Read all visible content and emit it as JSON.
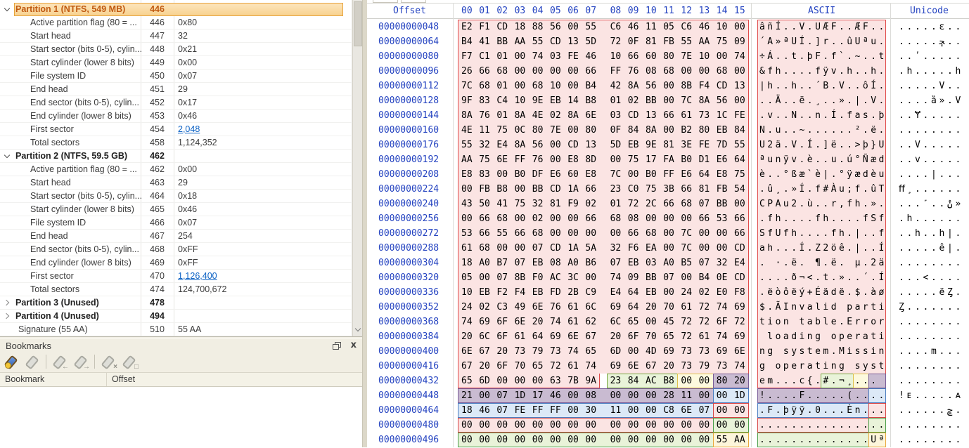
{
  "template_panel": {
    "rows": [
      {
        "type": "group",
        "state": "expanded",
        "selected": true,
        "label": "Partition 1 (NTFS, 549 MB)",
        "offset": "446",
        "value": ""
      },
      {
        "type": "field",
        "label": "Active partition flag (80 = ...",
        "offset": "446",
        "value": "0x80"
      },
      {
        "type": "field",
        "label": "Start head",
        "offset": "447",
        "value": "32"
      },
      {
        "type": "field",
        "label": "Start sector (bits 0-5), cylin...",
        "offset": "448",
        "value": "0x21"
      },
      {
        "type": "field",
        "label": "Start cylinder (lower 8 bits)",
        "offset": "449",
        "value": "0x00"
      },
      {
        "type": "field",
        "label": "File system ID",
        "offset": "450",
        "value": "0x07"
      },
      {
        "type": "field",
        "label": "End head",
        "offset": "451",
        "value": "29"
      },
      {
        "type": "field",
        "label": "End sector (bits 0-5), cylin...",
        "offset": "452",
        "value": "0x17"
      },
      {
        "type": "field",
        "label": "End cylinder (lower 8 bits)",
        "offset": "453",
        "value": "0x46"
      },
      {
        "type": "field",
        "label": "First sector",
        "offset": "454",
        "value": "2,048",
        "link": true
      },
      {
        "type": "field",
        "label": "Total sectors",
        "offset": "458",
        "value": "1,124,352"
      },
      {
        "type": "group",
        "state": "expanded",
        "label": "Partition 2 (NTFS, 59.5 GB)",
        "offset": "462",
        "value": ""
      },
      {
        "type": "field",
        "label": "Active partition flag (80 = ...",
        "offset": "462",
        "value": "0x00"
      },
      {
        "type": "field",
        "label": "Start head",
        "offset": "463",
        "value": "29"
      },
      {
        "type": "field",
        "label": "Start sector (bits 0-5), cylin...",
        "offset": "464",
        "value": "0x18"
      },
      {
        "type": "field",
        "label": "Start cylinder (lower 8 bits)",
        "offset": "465",
        "value": "0x46"
      },
      {
        "type": "field",
        "label": "File system ID",
        "offset": "466",
        "value": "0x07"
      },
      {
        "type": "field",
        "label": "End head",
        "offset": "467",
        "value": "254"
      },
      {
        "type": "field",
        "label": "End sector (bits 0-5), cylin...",
        "offset": "468",
        "value": "0xFF"
      },
      {
        "type": "field",
        "label": "End cylinder (lower 8 bits)",
        "offset": "469",
        "value": "0xFF"
      },
      {
        "type": "field",
        "label": "First sector",
        "offset": "470",
        "value": "1,126,400",
        "link": true
      },
      {
        "type": "field",
        "label": "Total sectors",
        "offset": "474",
        "value": "124,700,672"
      },
      {
        "type": "group",
        "state": "collapsed",
        "label": "Partition 3 (Unused)",
        "offset": "478",
        "value": ""
      },
      {
        "type": "group",
        "state": "collapsed",
        "label": "Partition 4 (Unused)",
        "offset": "494",
        "value": ""
      },
      {
        "type": "field",
        "indent": 0,
        "label": "Signature (55 AA)",
        "offset": "510",
        "value": "55 AA"
      }
    ]
  },
  "bookmarks": {
    "title": "Bookmarks",
    "columns": [
      "Bookmark",
      "Offset"
    ],
    "close_glyph": "x",
    "toolbar_icons": [
      {
        "name": "bookmark-new-icon",
        "glyph": "",
        "colored": true
      },
      {
        "name": "bookmark-icon",
        "glyph": "",
        "colored": false
      },
      {
        "name": "bookmark-previous-icon",
        "glyph": "←",
        "colored": false
      },
      {
        "name": "bookmark-next-icon",
        "glyph": "→",
        "colored": false
      },
      {
        "name": "bookmark-delete-icon",
        "glyph": "×",
        "colored": false
      },
      {
        "name": "bookmark-delete-all-icon",
        "glyph": "□",
        "colored": false
      }
    ]
  },
  "hex_editor": {
    "headers": {
      "offset": "Offset",
      "bytes": [
        "00",
        "01",
        "02",
        "03",
        "04",
        "05",
        "06",
        "07",
        "08",
        "09",
        "10",
        "11",
        "12",
        "13",
        "14",
        "15"
      ],
      "ascii": "ASCII",
      "unicode": "Unicode"
    },
    "rows": [
      {
        "o": "00000000048",
        "h": "E2 F1 CD 18 88 56 00 55 C6 46 11 05 C6 46 10 00",
        "a": "âñÍ..V.UÆF..ÆF..",
        "u": ".....ԑ.."
      },
      {
        "o": "00000000064",
        "h": "B4 41 BB AA 55 CD 13 5D 72 0F 81 FB 55 AA 75 09",
        "a": "´A»ªUÍ.]r..ûUªu.",
        "u": ".....ﮁ.."
      },
      {
        "o": "00000000080",
        "h": "F7 C1 01 00 74 03 FE 46 10 66 60 80 7E 10 00 74",
        "a": "÷Á..t.þF.f`.~..t",
        "u": "..ʹ....."
      },
      {
        "o": "00000000096",
        "h": "26 66 68 00 00 00 00 66 FF 76 08 68 00 00 68 00",
        "a": "&fh....fÿv.h..h.",
        "u": ".h.....h"
      },
      {
        "o": "00000000112",
        "h": "7C 68 01 00 68 10 00 B4 42 8A 56 00 8B F4 CD 13",
        "a": "|h..h..´B.V..ôÍ.",
        "u": ".....V.."
      },
      {
        "o": "00000000128",
        "h": "9F 83 C4 10 9E EB 14 B8 01 02 BB 00 7C 8A 56 00",
        "a": "..Ä..ë.¸..».|.V.",
        "u": "....ȁ».V"
      },
      {
        "o": "00000000144",
        "h": "8A 76 01 8A 4E 02 8A 6E 03 CD 13 66 61 73 1C FE",
        "a": ".v..N..n.Í.fas.þ",
        "u": "..Ɏ....."
      },
      {
        "o": "00000000160",
        "h": "4E 11 75 0C 80 7E 00 80 0F 84 8A 00 B2 80 EB 84",
        "a": "N.u..~......².ë.",
        "u": "........"
      },
      {
        "o": "00000000176",
        "h": "55 32 E4 8A 56 00 CD 13 5D EB 9E 81 3E FE 7D 55",
        "a": "U2ä.V.Í.]ë..>þ}U",
        "u": "..V....."
      },
      {
        "o": "00000000192",
        "h": "AA 75 6E FF 76 00 E8 8D 00 75 17 FA B0 D1 E6 64",
        "a": "ªunÿv.è..u.ú°Ñæd",
        "u": "..v....."
      },
      {
        "o": "00000000208",
        "h": "E8 83 00 B0 DF E6 60 E8 7C 00 B0 FF E6 64 E8 75",
        "a": "è..°ßæ`è|.°ÿædèu",
        "u": "....|..."
      },
      {
        "o": "00000000224",
        "h": "00 FB B8 00 BB CD 1A 66 23 C0 75 3B 66 81 FB 54",
        "a": ".û¸.»Í.f#Àu;f.ûT",
        "u": "ﬀ¸......"
      },
      {
        "o": "00000000240",
        "h": "43 50 41 75 32 81 F9 02 01 72 2C 66 68 07 BB 00",
        "a": "CPAu2.ù..r,fh.».",
        "u": "...˹..ݨ»"
      },
      {
        "o": "00000000256",
        "h": "00 66 68 00 02 00 00 66 68 08 00 00 00 66 53 66",
        "a": ".fh....fh....fSf",
        "u": ".h......"
      },
      {
        "o": "00000000272",
        "h": "53 66 55 66 68 00 00 00 00 66 68 00 7C 00 00 66",
        "a": "SfUfh....fh.|..f",
        "u": "..h..h|."
      },
      {
        "o": "00000000288",
        "h": "61 68 00 00 07 CD 1A 5A 32 F6 EA 00 7C 00 00 CD",
        "a": "ah...Í.Z2öê.|..Í",
        "u": ".....ê|."
      },
      {
        "o": "00000000304",
        "h": "18 A0 B7 07 EB 08 A0 B6 07 EB 03 A0 B5 07 32 E4",
        "a": ". ·.ë. ¶.ë. µ.2ä",
        "u": "........"
      },
      {
        "o": "00000000320",
        "h": "05 00 07 8B F0 AC 3C 00 74 09 BB 07 00 B4 0E CD",
        "a": "....ð¬<.t.»..´.Í",
        "u": "...<...."
      },
      {
        "o": "00000000336",
        "h": "10 EB F2 F4 EB FD 2B C9 E4 64 EB 00 24 02 E0 F8",
        "a": ".ëòôëý+Éädë.$.àø",
        "u": ".....ëȤ."
      },
      {
        "o": "00000000352",
        "h": "24 02 C3 49 6E 76 61 6C 69 64 20 70 61 72 74 69",
        "a": "$.ÃInvalid parti",
        "u": "Ȥ......."
      },
      {
        "o": "00000000368",
        "h": "74 69 6F 6E 20 74 61 62 6C 65 00 45 72 72 6F 72",
        "a": "tion table.Error",
        "u": "........"
      },
      {
        "o": "00000000384",
        "h": "20 6C 6F 61 64 69 6E 67 20 6F 70 65 72 61 74 69",
        "a": " loading operati",
        "u": "........"
      },
      {
        "o": "00000000400",
        "h": "6E 67 20 73 79 73 74 65 6D 00 4D 69 73 73 69 6E",
        "a": "ng system.Missin",
        "u": "....m..."
      },
      {
        "o": "00000000416",
        "h": "67 20 6F 70 65 72 61 74 69 6E 67 20 73 79 73 74",
        "a": "g operating syst",
        "u": "........"
      },
      {
        "o": "00000000432",
        "h": "65 6D 00 00 00 63 7B 9A 23 84 AC B8 00 00 80 20",
        "a": "em...c{.#.¬¸... ",
        "u": "........"
      },
      {
        "o": "00000000448",
        "h": "21 00 07 1D 17 46 00 08 00 00 00 28 11 00 00 1D",
        "a": "!....F.....(....",
        "u": "!ᴇ.....ᴀ"
      },
      {
        "o": "00000000464",
        "h": "18 46 07 FE FF FF 00 30 11 00 00 C8 6E 07 00 00",
        "a": ".F.þÿÿ.0...Èn...",
        "u": "......ݮ."
      },
      {
        "o": "00000000480",
        "h": "00 00 00 00 00 00 00 00 00 00 00 00 00 00 00 00",
        "a": "................",
        "u": "........"
      },
      {
        "o": "00000000496",
        "h": "00 00 00 00 00 00 00 00 00 00 00 00 00 00 55 AA",
        "a": "..............Uª",
        "u": "........"
      }
    ],
    "regions": [
      {
        "rows": [
          0,
          23
        ],
        "bytes": [
          0,
          15
        ],
        "kind": "boot_code",
        "sides": "ltr"
      },
      {
        "rows": [
          24,
          24
        ],
        "bytes": [
          0,
          7
        ],
        "kind": "boot_code",
        "sides": "lrb"
      },
      {
        "rows": [
          24,
          24
        ],
        "bytes": [
          8,
          11
        ],
        "kind": "disk_signature",
        "sides": "ltrb"
      },
      {
        "rows": [
          24,
          24
        ],
        "bytes": [
          12,
          13
        ],
        "kind": "reserved",
        "sides": "ltrb"
      },
      {
        "rows": [
          24,
          24
        ],
        "bytes": [
          14,
          15
        ],
        "kind": "partition1",
        "sides": "ltrb"
      },
      {
        "rows": [
          25,
          25
        ],
        "bytes": [
          0,
          13
        ],
        "kind": "partition1",
        "sides": "ltrb"
      },
      {
        "rows": [
          25,
          25
        ],
        "bytes": [
          14,
          15
        ],
        "kind": "partition2",
        "sides": "ltrb"
      },
      {
        "rows": [
          26,
          26
        ],
        "bytes": [
          0,
          13
        ],
        "kind": "partition2",
        "sides": "ltrb"
      },
      {
        "rows": [
          26,
          26
        ],
        "bytes": [
          14,
          15
        ],
        "kind": "partition3",
        "sides": "ltrb"
      },
      {
        "rows": [
          27,
          27
        ],
        "bytes": [
          0,
          13
        ],
        "kind": "partition3",
        "sides": "ltrb"
      },
      {
        "rows": [
          27,
          27
        ],
        "bytes": [
          14,
          15
        ],
        "kind": "partition4",
        "sides": "ltrb"
      },
      {
        "rows": [
          28,
          28
        ],
        "bytes": [
          0,
          13
        ],
        "kind": "partition4",
        "sides": "ltrb"
      },
      {
        "rows": [
          28,
          28
        ],
        "bytes": [
          14,
          15
        ],
        "kind": "boot_signature",
        "sides": "ltrb"
      }
    ],
    "region_colors": {
      "boot_code": {
        "bg": "#FBE4E3",
        "bd": "#E04A4A"
      },
      "disk_signature": {
        "bg": "#E9F3D9",
        "bd": "#76A73E"
      },
      "reserved": {
        "bg": "#FDF9DE",
        "bd": "#DFC14B"
      },
      "partition1": {
        "bg": "#C9BBD1",
        "bd": "#7A5C97"
      },
      "partition2": {
        "bg": "#DCE9F7",
        "bd": "#4C7EC0"
      },
      "partition3": {
        "bg": "#FBE4E3",
        "bd": "#D74646"
      },
      "partition4": {
        "bg": "#E9F3D9",
        "bd": "#4C9E49"
      },
      "boot_signature": {
        "bg": "#FDF6DB",
        "bd": "#E9A93C"
      }
    },
    "selection_color": "#C05A11"
  }
}
